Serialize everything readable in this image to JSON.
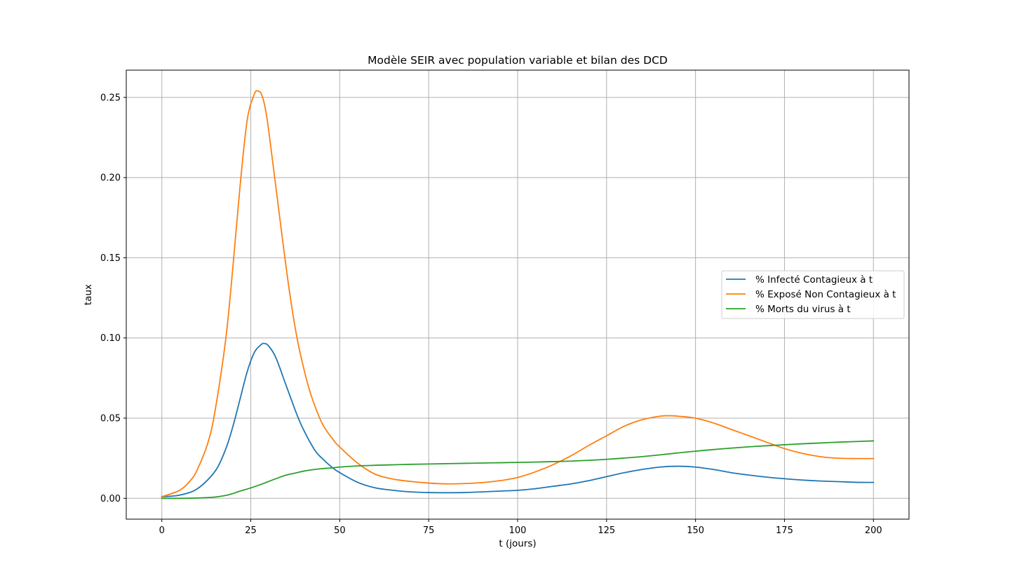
{
  "chart_data": {
    "type": "line",
    "title": "Modèle SEIR avec population variable et bilan des DCD",
    "xlabel": "t (jours)",
    "ylabel": "taux",
    "xlim": [
      -10,
      210
    ],
    "ylim": [
      -0.013,
      0.267
    ],
    "xticks": [
      0,
      25,
      50,
      75,
      100,
      125,
      150,
      175,
      200
    ],
    "xtick_labels": [
      "0",
      "25",
      "50",
      "75",
      "100",
      "125",
      "150",
      "175",
      "200"
    ],
    "yticks": [
      0.0,
      0.05,
      0.1,
      0.15,
      0.2,
      0.25
    ],
    "ytick_labels": [
      "0.00",
      "0.05",
      "0.10",
      "0.15",
      "0.20",
      "0.25"
    ],
    "grid": true,
    "legend_position": "center-right",
    "series": [
      {
        "name": "% Infecté Contagieux à t",
        "color": "#1f77b4",
        "x": [
          0,
          5,
          10,
          15,
          18,
          20,
          22,
          24,
          26,
          28,
          29,
          30,
          32,
          35,
          38,
          40,
          43,
          45,
          48,
          50,
          55,
          60,
          65,
          70,
          75,
          80,
          85,
          90,
          95,
          100,
          105,
          110,
          115,
          120,
          125,
          130,
          135,
          140,
          145,
          150,
          155,
          160,
          165,
          170,
          175,
          180,
          185,
          190,
          195,
          200
        ],
        "y": [
          0.001,
          0.002,
          0.006,
          0.017,
          0.031,
          0.045,
          0.062,
          0.079,
          0.091,
          0.096,
          0.0965,
          0.095,
          0.088,
          0.07,
          0.052,
          0.042,
          0.03,
          0.025,
          0.019,
          0.016,
          0.01,
          0.0065,
          0.005,
          0.004,
          0.0036,
          0.0035,
          0.0036,
          0.004,
          0.0045,
          0.005,
          0.006,
          0.0075,
          0.009,
          0.011,
          0.0135,
          0.016,
          0.018,
          0.0195,
          0.02,
          0.0195,
          0.018,
          0.016,
          0.0145,
          0.0132,
          0.0122,
          0.0114,
          0.0108,
          0.0104,
          0.01,
          0.0099
        ]
      },
      {
        "name": "% Exposé Non Contagieux à t",
        "color": "#ff7f0e",
        "x": [
          0,
          5,
          8,
          10,
          13,
          15,
          18,
          20,
          22,
          24,
          26,
          27,
          28,
          29,
          30,
          32,
          34,
          36,
          38,
          40,
          42,
          45,
          48,
          50,
          55,
          60,
          65,
          70,
          75,
          80,
          85,
          90,
          95,
          100,
          105,
          110,
          115,
          120,
          125,
          130,
          135,
          140,
          143,
          145,
          150,
          155,
          160,
          165,
          170,
          175,
          180,
          185,
          190,
          195,
          200
        ],
        "y": [
          0.001,
          0.005,
          0.011,
          0.018,
          0.035,
          0.055,
          0.1,
          0.145,
          0.195,
          0.236,
          0.252,
          0.254,
          0.252,
          0.244,
          0.23,
          0.195,
          0.16,
          0.127,
          0.1,
          0.08,
          0.064,
          0.047,
          0.037,
          0.032,
          0.022,
          0.015,
          0.012,
          0.0105,
          0.0095,
          0.009,
          0.0092,
          0.0098,
          0.011,
          0.013,
          0.0165,
          0.021,
          0.0265,
          0.033,
          0.039,
          0.045,
          0.049,
          0.0512,
          0.0515,
          0.0512,
          0.05,
          0.047,
          0.043,
          0.039,
          0.035,
          0.031,
          0.028,
          0.026,
          0.025,
          0.0248,
          0.0248
        ]
      },
      {
        "name": "% Morts du virus à t",
        "color": "#2ca02c",
        "x": [
          0,
          5,
          10,
          15,
          18,
          20,
          22,
          25,
          28,
          30,
          33,
          35,
          38,
          40,
          43,
          45,
          48,
          50,
          55,
          60,
          65,
          70,
          75,
          80,
          85,
          90,
          95,
          100,
          105,
          110,
          115,
          120,
          125,
          130,
          135,
          140,
          145,
          150,
          155,
          160,
          165,
          170,
          175,
          180,
          185,
          190,
          195,
          200
        ],
        "y": [
          0.0,
          0.0,
          0.0002,
          0.0008,
          0.0018,
          0.003,
          0.0045,
          0.0065,
          0.0088,
          0.0105,
          0.013,
          0.0145,
          0.016,
          0.017,
          0.018,
          0.0185,
          0.019,
          0.0195,
          0.0202,
          0.0206,
          0.0209,
          0.0212,
          0.0214,
          0.0216,
          0.0218,
          0.022,
          0.0222,
          0.0224,
          0.0226,
          0.0229,
          0.0232,
          0.0237,
          0.0243,
          0.0251,
          0.026,
          0.0271,
          0.0283,
          0.0294,
          0.0304,
          0.0313,
          0.0321,
          0.0328,
          0.0334,
          0.034,
          0.0345,
          0.035,
          0.0354,
          0.0358
        ]
      }
    ]
  }
}
